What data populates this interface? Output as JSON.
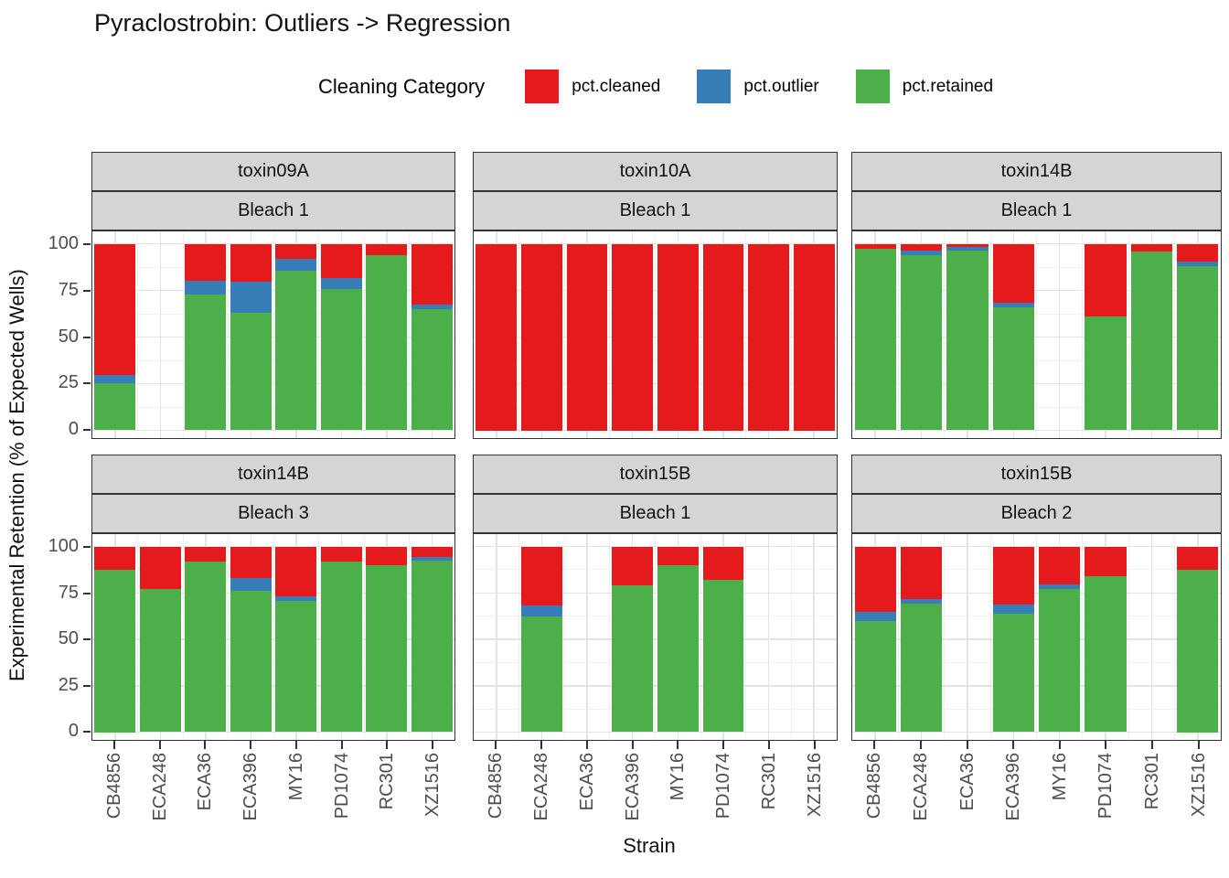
{
  "chart_data": {
    "type": "bar",
    "stacked": true,
    "title": "Pyraclostrobin: Outliers -> Regression",
    "legend_title": "Cleaning Category",
    "xlabel": "Strain",
    "ylabel": "Experimental Retention (% of Expected Wells)",
    "ylim": [
      0,
      100
    ],
    "yticks": [
      0,
      25,
      50,
      75,
      100
    ],
    "yticks_minor": [
      12.5,
      37.5,
      62.5,
      87.5
    ],
    "grid": true,
    "legend_position": "top",
    "series": [
      {
        "name": "pct.cleaned",
        "color": "#E41A1C"
      },
      {
        "name": "pct.outlier",
        "color": "#377EB8"
      },
      {
        "name": "pct.retained",
        "color": "#4DAF4A"
      }
    ],
    "categories": [
      "CB4856",
      "ECA248",
      "ECA36",
      "ECA396",
      "MY16",
      "PD1074",
      "RC301",
      "XZ1516"
    ],
    "facets": [
      {
        "strip_toxin": "toxin09A",
        "strip_bleach": "Bleach 1",
        "bars": [
          {
            "retained": 25,
            "outlier": 4.5,
            "cleaned": 70.5
          },
          null,
          {
            "retained": 73,
            "outlier": 7,
            "cleaned": 20
          },
          {
            "retained": 63,
            "outlier": 16.5,
            "cleaned": 20.5
          },
          {
            "retained": 85.5,
            "outlier": 6.5,
            "cleaned": 8
          },
          {
            "retained": 75.5,
            "outlier": 6,
            "cleaned": 18.5
          },
          {
            "retained": 94,
            "outlier": 0,
            "cleaned": 6
          },
          {
            "retained": 65,
            "outlier": 2.5,
            "cleaned": 32.5
          }
        ]
      },
      {
        "strip_toxin": "toxin10A",
        "strip_bleach": "Bleach 1",
        "bars": [
          {
            "retained": 0,
            "outlier": 0,
            "cleaned": 100
          },
          {
            "retained": 0,
            "outlier": 0,
            "cleaned": 100
          },
          {
            "retained": 0,
            "outlier": 0,
            "cleaned": 100
          },
          {
            "retained": 0,
            "outlier": 0,
            "cleaned": 100
          },
          {
            "retained": 0,
            "outlier": 0,
            "cleaned": 100
          },
          {
            "retained": 0,
            "outlier": 0,
            "cleaned": 100
          },
          {
            "retained": 0,
            "outlier": 0,
            "cleaned": 100
          },
          {
            "retained": 0,
            "outlier": 0,
            "cleaned": 100
          }
        ]
      },
      {
        "strip_toxin": "toxin14B",
        "strip_bleach": "Bleach 1",
        "bars": [
          {
            "retained": 97.5,
            "outlier": 0,
            "cleaned": 2.5
          },
          {
            "retained": 94,
            "outlier": 2.5,
            "cleaned": 3.5
          },
          {
            "retained": 96.5,
            "outlier": 2,
            "cleaned": 1.5
          },
          {
            "retained": 66,
            "outlier": 2.5,
            "cleaned": 31.5
          },
          null,
          {
            "retained": 61,
            "outlier": 0,
            "cleaned": 39
          },
          {
            "retained": 96,
            "outlier": 0,
            "cleaned": 4
          },
          {
            "retained": 88,
            "outlier": 2.5,
            "cleaned": 9.5
          }
        ]
      },
      {
        "strip_toxin": "toxin14B",
        "strip_bleach": "Bleach 3",
        "bars": [
          {
            "retained": 87.5,
            "outlier": 0,
            "cleaned": 12.5
          },
          {
            "retained": 77,
            "outlier": 0,
            "cleaned": 23
          },
          {
            "retained": 92,
            "outlier": 0,
            "cleaned": 8
          },
          {
            "retained": 76,
            "outlier": 7,
            "cleaned": 17
          },
          {
            "retained": 70.5,
            "outlier": 2.5,
            "cleaned": 27
          },
          {
            "retained": 92,
            "outlier": 0,
            "cleaned": 8
          },
          {
            "retained": 90,
            "outlier": 0,
            "cleaned": 10
          },
          {
            "retained": 92.5,
            "outlier": 2,
            "cleaned": 5.5
          }
        ]
      },
      {
        "strip_toxin": "toxin15B",
        "strip_bleach": "Bleach 1",
        "bars": [
          null,
          {
            "retained": 62.5,
            "outlier": 5.5,
            "cleaned": 32
          },
          null,
          {
            "retained": 79,
            "outlier": 0,
            "cleaned": 21
          },
          {
            "retained": 90,
            "outlier": 0,
            "cleaned": 10
          },
          {
            "retained": 82,
            "outlier": 0,
            "cleaned": 18
          },
          null,
          null
        ]
      },
      {
        "strip_toxin": "toxin15B",
        "strip_bleach": "Bleach 2",
        "bars": [
          {
            "retained": 60,
            "outlier": 5,
            "cleaned": 35
          },
          {
            "retained": 69,
            "outlier": 2.5,
            "cleaned": 28.5
          },
          null,
          {
            "retained": 64,
            "outlier": 4.5,
            "cleaned": 31.5
          },
          {
            "retained": 77,
            "outlier": 2.5,
            "cleaned": 20.5
          },
          {
            "retained": 84,
            "outlier": 0,
            "cleaned": 16
          },
          null,
          {
            "retained": 87.5,
            "outlier": 0,
            "cleaned": 12.5
          }
        ]
      }
    ]
  }
}
